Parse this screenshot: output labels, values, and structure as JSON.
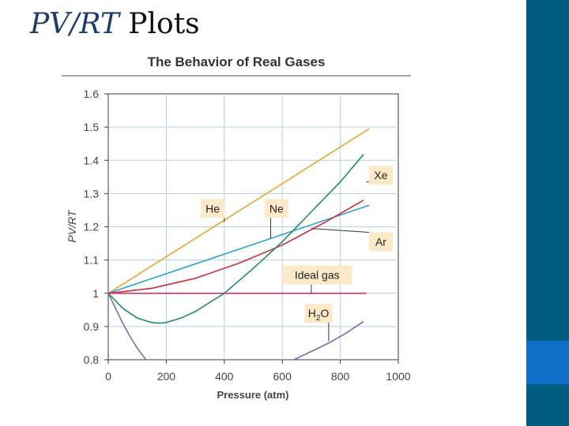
{
  "slide": {
    "title_italic": "PV/RT",
    "title_rest": " Plots"
  },
  "chart_data": {
    "type": "line",
    "title": "The Behavior of Real Gases",
    "xlabel": "Pressure (atm)",
    "ylabel": "PV/RT",
    "xlim": [
      0,
      1000
    ],
    "ylim": [
      0.8,
      1.6
    ],
    "grid": true,
    "x_ticks": [
      0,
      200,
      400,
      600,
      800,
      1000
    ],
    "y_ticks": [
      {
        "value": 0.8,
        "label": "0.8"
      },
      {
        "value": 0.9,
        "label": "0.9"
      },
      {
        "value": 1.0,
        "label": "1"
      },
      {
        "value": 1.1,
        "label": "1.1"
      },
      {
        "value": 1.2,
        "label": "1.2"
      },
      {
        "value": 1.3,
        "label": "1.3"
      },
      {
        "value": 1.4,
        "label": "1.4"
      },
      {
        "value": 1.5,
        "label": "1.5"
      },
      {
        "value": 1.6,
        "label": "1.6"
      }
    ],
    "series": [
      {
        "name": "He",
        "color": "#e8a72a",
        "x": [
          0,
          900
        ],
        "y": [
          1.0,
          1.495
        ]
      },
      {
        "name": "Ne",
        "color": "#29a3d6",
        "x": [
          0,
          900
        ],
        "y": [
          1.0,
          1.265
        ]
      },
      {
        "name": "Ar",
        "color": "#cc2e3b",
        "x": [
          0,
          150,
          300,
          450,
          600,
          750,
          880
        ],
        "y": [
          1.0,
          1.015,
          1.045,
          1.09,
          1.145,
          1.215,
          1.28
        ]
      },
      {
        "name": "Xe",
        "color": "#1f8f5f",
        "x": [
          0,
          50,
          100,
          150,
          175,
          200,
          250,
          300,
          400,
          500,
          600,
          700,
          800,
          880
        ],
        "y": [
          1.0,
          0.955,
          0.925,
          0.912,
          0.91,
          0.912,
          0.925,
          0.945,
          1.0,
          1.075,
          1.155,
          1.245,
          1.335,
          1.418
        ]
      },
      {
        "name": "Ideal gas",
        "color": "#d6336c",
        "x": [
          0,
          890
        ],
        "y": [
          1.0,
          1.0
        ]
      },
      {
        "name": "H2O",
        "color": "#7a6bb8",
        "x": [
          0,
          25,
          50,
          75,
          100,
          130
        ],
        "y": [
          1.0,
          0.955,
          0.91,
          0.87,
          0.835,
          0.8
        ],
        "x2": [
          640,
          700,
          760,
          820,
          880
        ],
        "y2": [
          0.8,
          0.825,
          0.85,
          0.88,
          0.915
        ]
      }
    ],
    "labels": [
      {
        "text": "He",
        "box_x": 360,
        "box_y": 1.255,
        "point_x": 400,
        "point_y": 1.215
      },
      {
        "text": "Ne",
        "box_x": 580,
        "box_y": 1.255,
        "point_x": 560,
        "point_y": 1.165
      },
      {
        "text": "Xe",
        "box_x": 940,
        "box_y": 1.355,
        "point_x": 890,
        "point_y": 1.335
      },
      {
        "text": "Ar",
        "box_x": 940,
        "box_y": 1.155,
        "point_x": 700,
        "point_y": 1.195
      },
      {
        "text": "Ideal gas",
        "box_x": 720,
        "box_y": 1.055,
        "point_x": 700,
        "point_y": 1.0
      },
      {
        "text": "H",
        "sub": "2",
        "after": "O",
        "box_x": 725,
        "box_y": 0.94,
        "point_x": 760,
        "point_y": 0.855
      }
    ]
  }
}
